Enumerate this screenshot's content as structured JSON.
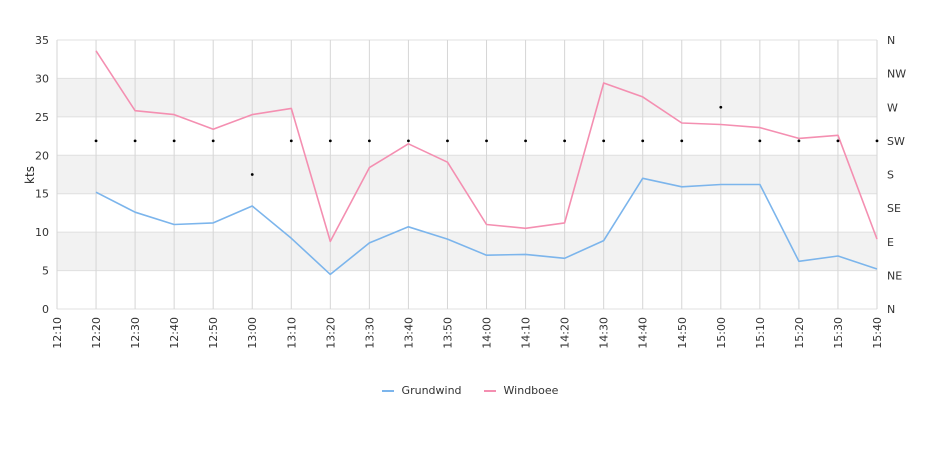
{
  "chart_data": {
    "type": "line",
    "ylabel": "kts",
    "ylim": [
      0,
      35
    ],
    "yticks": [
      0,
      5,
      10,
      15,
      20,
      25,
      30,
      35
    ],
    "x": [
      "12:10",
      "12:20",
      "12:30",
      "12:40",
      "12:50",
      "13:00",
      "13:10",
      "13:20",
      "13:30",
      "13:40",
      "13:50",
      "14:00",
      "14:10",
      "14:20",
      "14:30",
      "14:40",
      "14:50",
      "15:00",
      "15:10",
      "15:20",
      "15:30",
      "15:40"
    ],
    "series": [
      {
        "name": "Grundwind",
        "color": "#7cb5ec",
        "values": [
          null,
          15.2,
          12.6,
          11.0,
          11.2,
          13.4,
          9.2,
          4.5,
          8.6,
          10.7,
          9.1,
          7.0,
          7.1,
          6.6,
          8.9,
          17.0,
          15.9,
          16.2,
          16.2,
          6.2,
          6.9,
          5.2
        ]
      },
      {
        "name": "Windboee",
        "color": "#f48fb1",
        "values": [
          null,
          33.6,
          25.8,
          25.3,
          23.4,
          25.3,
          26.1,
          8.8,
          18.4,
          21.5,
          19.1,
          11.0,
          10.5,
          11.2,
          29.4,
          27.6,
          24.2,
          24.0,
          23.6,
          22.2,
          22.6,
          9.1
        ]
      }
    ],
    "direction": {
      "axis_labels": [
        "N",
        "NW",
        "W",
        "SW",
        "S",
        "SE",
        "E",
        "NE",
        "N"
      ],
      "points": [
        {
          "x": "12:20",
          "value": "SW"
        },
        {
          "x": "12:30",
          "value": "SW"
        },
        {
          "x": "12:40",
          "value": "SW"
        },
        {
          "x": "12:50",
          "value": "SW"
        },
        {
          "x": "13:00",
          "value": "S"
        },
        {
          "x": "13:10",
          "value": "SW"
        },
        {
          "x": "13:20",
          "value": "SW"
        },
        {
          "x": "13:30",
          "value": "SW"
        },
        {
          "x": "13:40",
          "value": "SW"
        },
        {
          "x": "13:50",
          "value": "SW"
        },
        {
          "x": "14:00",
          "value": "SW"
        },
        {
          "x": "14:10",
          "value": "SW"
        },
        {
          "x": "14:20",
          "value": "SW"
        },
        {
          "x": "14:30",
          "value": "SW"
        },
        {
          "x": "14:40",
          "value": "SW"
        },
        {
          "x": "14:50",
          "value": "SW"
        },
        {
          "x": "15:00",
          "value": "W"
        },
        {
          "x": "15:10",
          "value": "SW"
        },
        {
          "x": "15:20",
          "value": "SW"
        },
        {
          "x": "15:30",
          "value": "SW"
        },
        {
          "x": "15:40",
          "value": "SW"
        }
      ]
    },
    "grid": true,
    "legend": "bottom-center"
  }
}
